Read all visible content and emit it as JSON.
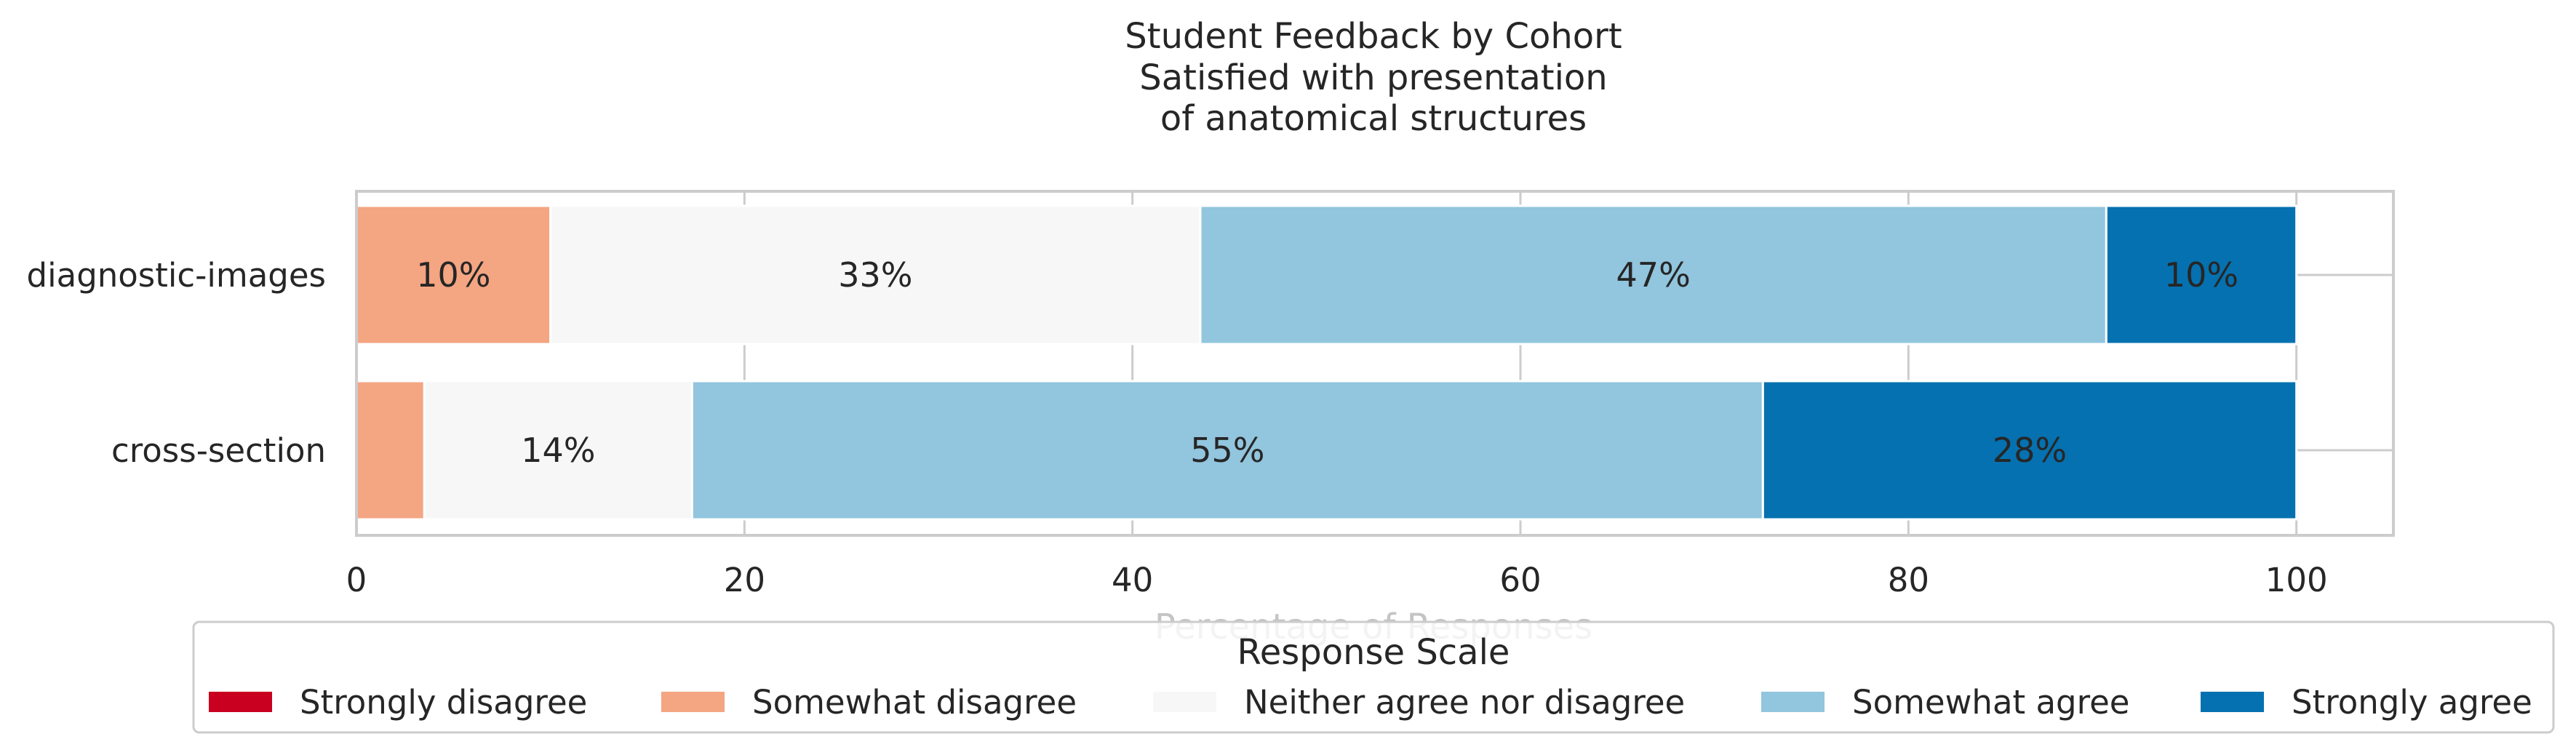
{
  "chart_data": {
    "type": "bar",
    "orientation": "horizontal",
    "stacked": true,
    "title_lines": [
      "Student Feedback by Cohort",
      "Satisfied with presentation",
      "of anatomical structures"
    ],
    "xlabel": "Percentage of Responses",
    "ylabel": "",
    "xlim": [
      0,
      105
    ],
    "xticks": [
      0,
      20,
      40,
      60,
      80,
      100
    ],
    "grid": true,
    "categories": [
      "diagnostic-images",
      "cross-section"
    ],
    "series": [
      {
        "name": "Strongly disagree",
        "color": "#ca0020",
        "values": [
          0,
          0
        ],
        "labels": [
          "",
          ""
        ]
      },
      {
        "name": "Somewhat disagree",
        "color": "#f4a582",
        "values": [
          10,
          3.5
        ],
        "labels": [
          "10%",
          ""
        ]
      },
      {
        "name": "Neither agree nor disagree",
        "color": "#f7f7f7",
        "values": [
          33.5,
          13.8
        ],
        "labels": [
          "33%",
          "14%"
        ]
      },
      {
        "name": "Somewhat agree",
        "color": "#92c5de",
        "values": [
          46.7,
          55.2
        ],
        "labels": [
          "47%",
          "55%"
        ]
      },
      {
        "name": "Strongly agree",
        "color": "#0571b0",
        "values": [
          9.8,
          27.5
        ],
        "labels": [
          "10%",
          "28%"
        ]
      }
    ],
    "legend": {
      "title": "Response Scale",
      "placement": "bottom-center",
      "entries": [
        "Strongly disagree",
        "Somewhat disagree",
        "Neither agree nor disagree",
        "Somewhat agree",
        "Strongly agree"
      ]
    }
  }
}
